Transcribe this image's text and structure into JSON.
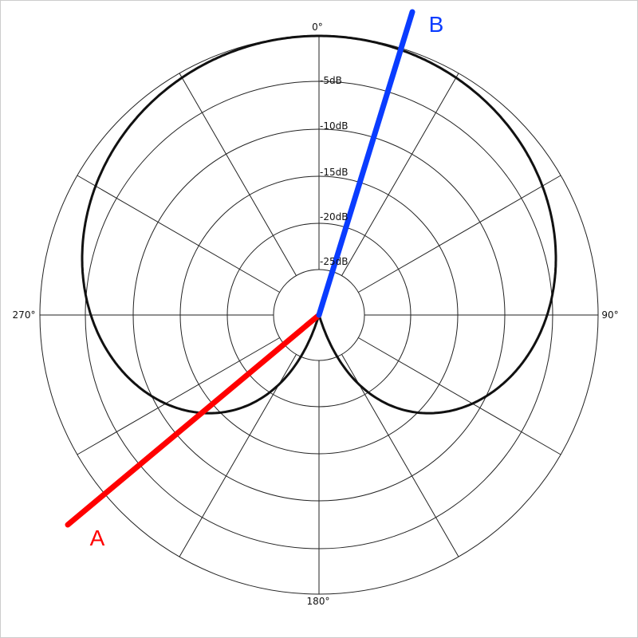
{
  "angles": [
    "0°",
    "90°",
    "180°",
    "270°"
  ],
  "rings": [
    "-5dB",
    "-10dB",
    "-15dB",
    "-20dB",
    "-25dB"
  ],
  "lines": {
    "a": "A",
    "b": "B"
  }
}
